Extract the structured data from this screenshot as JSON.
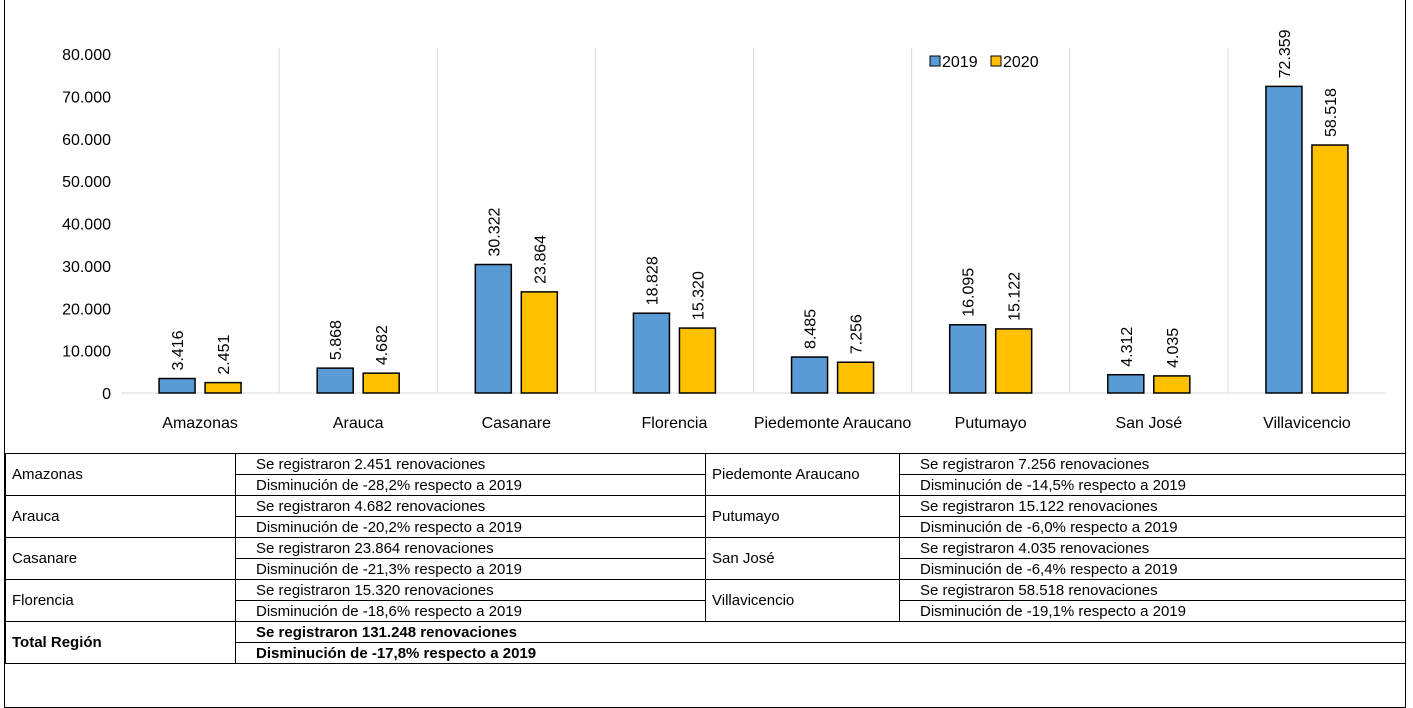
{
  "chart_data": {
    "type": "bar",
    "title": "",
    "xlabel": "",
    "ylabel": "",
    "ylim": [
      0,
      80000
    ],
    "y_ticks": [
      "0",
      "10.000",
      "20.000",
      "30.000",
      "40.000",
      "50.000",
      "60.000",
      "70.000",
      "80.000"
    ],
    "grid": "vertical separators between categories",
    "legend_position": "top-right",
    "categories": [
      "Amazonas",
      "Arauca",
      "Casanare",
      "Florencia",
      "Piedemonte Araucano",
      "Putumayo",
      "San José",
      "Villavicencio"
    ],
    "series": [
      {
        "name": "2019",
        "color": "#5b9bd5",
        "values": [
          3416,
          5868,
          30322,
          18828,
          8485,
          16095,
          4312,
          72359
        ],
        "labels": [
          "3.416",
          "5.868",
          "30.322",
          "18.828",
          "8.485",
          "16.095",
          "4.312",
          "72.359"
        ]
      },
      {
        "name": "2020",
        "color": "#ffc000",
        "values": [
          2451,
          4682,
          23864,
          15320,
          7256,
          15122,
          4035,
          58518
        ],
        "labels": [
          "2.451",
          "4.682",
          "23.864",
          "15.320",
          "7.256",
          "15.122",
          "4.035",
          "58.518"
        ]
      }
    ]
  },
  "table": {
    "left": [
      {
        "region": "Amazonas",
        "line1": "Se registraron 2.451 renovaciones",
        "line2": "Disminución de -28,2% respecto a 2019"
      },
      {
        "region": "Arauca",
        "line1": "Se registraron 4.682 renovaciones",
        "line2": "Disminución de -20,2% respecto a 2019"
      },
      {
        "region": "Casanare",
        "line1": "Se registraron 23.864 renovaciones",
        "line2": "Disminución de -21,3% respecto a 2019"
      },
      {
        "region": "Florencia",
        "line1": "Se registraron 15.320 renovaciones",
        "line2": "Disminución de -18,6% respecto a 2019"
      }
    ],
    "right": [
      {
        "region": "Piedemonte Araucano",
        "line1": "Se registraron 7.256 renovaciones",
        "line2": "Disminución de -14,5% respecto a 2019"
      },
      {
        "region": "Putumayo",
        "line1": "Se registraron 15.122 renovaciones",
        "line2": "Disminución de -6,0% respecto a 2019"
      },
      {
        "region": "San José",
        "line1": "Se registraron 4.035 renovaciones",
        "line2": "Disminución de -6,4% respecto a 2019"
      },
      {
        "region": "Villavicencio",
        "line1": "Se registraron 58.518 renovaciones",
        "line2": "Disminución de -19,1% respecto a 2019"
      }
    ],
    "total": {
      "region": "Total Región",
      "line1": "Se registraron 131.248 renovaciones",
      "line2": "Disminución de -17,8% respecto a 2019"
    }
  }
}
